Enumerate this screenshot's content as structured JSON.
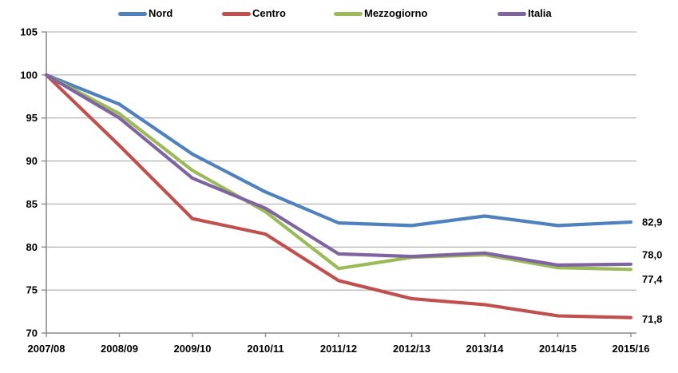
{
  "chart_data": {
    "type": "line",
    "title": "",
    "xlabel": "",
    "ylabel": "",
    "categories": [
      "2007/08",
      "2008/09",
      "2009/10",
      "2010/11",
      "2011/12",
      "2012/13",
      "2013/14",
      "2014/15",
      "2015/16"
    ],
    "series": [
      {
        "name": "Nord",
        "color": "#4E81BD",
        "values": [
          100,
          96.6,
          90.8,
          86.4,
          82.8,
          82.5,
          83.6,
          82.5,
          82.9
        ],
        "end_label": "82,9",
        "label_dy": 0
      },
      {
        "name": "Centro",
        "color": "#C0504D",
        "values": [
          100,
          91.8,
          83.3,
          81.5,
          76.1,
          74.0,
          73.3,
          72.0,
          71.8
        ],
        "end_label": "71,8",
        "label_dy": 2
      },
      {
        "name": "Mezzogiorno",
        "color": "#9BBB59",
        "values": [
          100,
          95.5,
          88.9,
          84.1,
          77.5,
          78.8,
          79.1,
          77.6,
          77.4
        ],
        "end_label": "77,4",
        "label_dy": 12
      },
      {
        "name": "Italia",
        "color": "#8064A2",
        "values": [
          100,
          95.0,
          88.0,
          84.5,
          79.2,
          78.9,
          79.3,
          77.9,
          78.0
        ],
        "end_label": "78,0",
        "label_dy": -12
      }
    ],
    "ylim": [
      70,
      105
    ],
    "yticks": [
      70,
      75,
      80,
      85,
      90,
      95,
      100,
      105
    ],
    "grid": true,
    "legend_position": "top",
    "colors": {
      "gridline": "#ABABAB",
      "axis": "#8C8C8C",
      "text": "#000000",
      "background": "#FFFFFF"
    }
  }
}
